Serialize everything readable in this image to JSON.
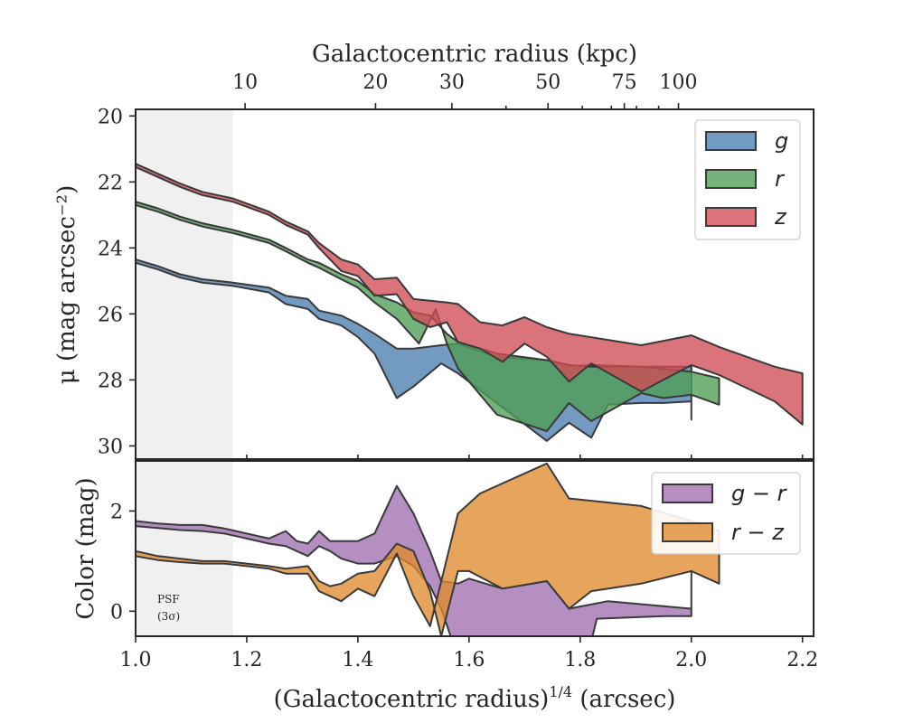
{
  "chart_data": [
    {
      "type": "area",
      "panel": "surface_brightness",
      "top_xlabel": "Galactocentric radius (kpc)",
      "top_ticks": [
        10,
        20,
        30,
        50,
        75,
        100
      ],
      "top_tick_labels": [
        "10",
        "20",
        "30",
        "50",
        "75",
        "100"
      ],
      "ylabel": "μ (mag arcsec⁻²)",
      "ylim": [
        30.4,
        19.8
      ],
      "yticks": [
        20,
        22,
        24,
        26,
        28,
        30
      ],
      "ytick_labels": [
        "20",
        "22",
        "24",
        "26",
        "28",
        "30"
      ],
      "xlim": [
        1.0,
        2.22
      ],
      "psf_region": [
        1.0,
        1.175
      ],
      "legend": {
        "placement": "top-right",
        "entries": [
          "g",
          "r",
          "z"
        ]
      },
      "series": [
        {
          "name": "g",
          "color": "#4c7fb0",
          "upper": [
            [
              1.0,
              24.35
            ],
            [
              1.04,
              24.55
            ],
            [
              1.08,
              24.8
            ],
            [
              1.12,
              24.95
            ],
            [
              1.175,
              25.05
            ],
            [
              1.24,
              25.2
            ],
            [
              1.27,
              25.45
            ],
            [
              1.31,
              25.55
            ],
            [
              1.33,
              25.9
            ],
            [
              1.37,
              26.05
            ],
            [
              1.4,
              26.3
            ],
            [
              1.43,
              26.6
            ],
            [
              1.47,
              27.05
            ],
            [
              1.5,
              27.05
            ],
            [
              1.55,
              26.95
            ],
            [
              1.58,
              26.9
            ],
            [
              1.65,
              27.3
            ],
            [
              1.74,
              27.4
            ],
            [
              1.78,
              27.6
            ],
            [
              1.82,
              27.55
            ],
            [
              1.91,
              27.6
            ],
            [
              2.0,
              27.6
            ]
          ],
          "lower": [
            [
              1.0,
              24.45
            ],
            [
              1.04,
              24.65
            ],
            [
              1.08,
              24.9
            ],
            [
              1.12,
              25.05
            ],
            [
              1.175,
              25.15
            ],
            [
              1.24,
              25.35
            ],
            [
              1.27,
              25.7
            ],
            [
              1.31,
              25.85
            ],
            [
              1.33,
              26.15
            ],
            [
              1.37,
              26.35
            ],
            [
              1.4,
              26.7
            ],
            [
              1.43,
              27.2
            ],
            [
              1.47,
              28.55
            ],
            [
              1.5,
              28.2
            ],
            [
              1.55,
              27.5
            ],
            [
              1.58,
              27.8
            ],
            [
              1.65,
              28.7
            ],
            [
              1.74,
              29.85
            ],
            [
              1.78,
              29.3
            ],
            [
              1.82,
              29.75
            ],
            [
              1.85,
              28.75
            ],
            [
              1.91,
              28.7
            ],
            [
              1.95,
              28.7
            ],
            [
              2.0,
              28.65
            ],
            [
              2.0,
              29.2
            ]
          ]
        },
        {
          "name": "r",
          "color": "#4f9d55",
          "upper": [
            [
              1.0,
              22.6
            ],
            [
              1.04,
              22.8
            ],
            [
              1.08,
              23.05
            ],
            [
              1.12,
              23.25
            ],
            [
              1.175,
              23.45
            ],
            [
              1.24,
              23.75
            ],
            [
              1.27,
              24.0
            ],
            [
              1.31,
              24.35
            ],
            [
              1.33,
              24.45
            ],
            [
              1.37,
              24.8
            ],
            [
              1.4,
              25.0
            ],
            [
              1.43,
              25.4
            ],
            [
              1.47,
              25.65
            ],
            [
              1.5,
              25.95
            ],
            [
              1.53,
              26.05
            ],
            [
              1.56,
              26.6
            ],
            [
              1.58,
              26.85
            ],
            [
              1.65,
              27.2
            ],
            [
              1.74,
              27.4
            ],
            [
              1.78,
              27.55
            ],
            [
              1.82,
              27.6
            ],
            [
              1.91,
              27.6
            ],
            [
              2.0,
              27.75
            ],
            [
              2.05,
              27.95
            ]
          ],
          "lower": [
            [
              1.0,
              22.7
            ],
            [
              1.04,
              22.9
            ],
            [
              1.08,
              23.15
            ],
            [
              1.12,
              23.35
            ],
            [
              1.175,
              23.55
            ],
            [
              1.24,
              23.85
            ],
            [
              1.27,
              24.1
            ],
            [
              1.31,
              24.45
            ],
            [
              1.33,
              24.6
            ],
            [
              1.37,
              24.95
            ],
            [
              1.4,
              25.2
            ],
            [
              1.43,
              25.65
            ],
            [
              1.47,
              26.15
            ],
            [
              1.51,
              26.9
            ],
            [
              1.54,
              25.85
            ],
            [
              1.56,
              26.9
            ],
            [
              1.58,
              27.65
            ],
            [
              1.65,
              29.05
            ],
            [
              1.74,
              29.55
            ],
            [
              1.78,
              28.7
            ],
            [
              1.82,
              29.25
            ],
            [
              1.91,
              28.4
            ],
            [
              1.95,
              28.55
            ],
            [
              2.0,
              28.45
            ],
            [
              2.05,
              28.75
            ]
          ]
        },
        {
          "name": "z",
          "color": "#d14c55",
          "upper": [
            [
              1.0,
              21.45
            ],
            [
              1.04,
              21.75
            ],
            [
              1.08,
              22.05
            ],
            [
              1.12,
              22.3
            ],
            [
              1.175,
              22.5
            ],
            [
              1.24,
              22.9
            ],
            [
              1.27,
              23.2
            ],
            [
              1.31,
              23.5
            ],
            [
              1.33,
              23.85
            ],
            [
              1.37,
              24.35
            ],
            [
              1.4,
              24.5
            ],
            [
              1.43,
              24.95
            ],
            [
              1.47,
              24.9
            ],
            [
              1.5,
              25.55
            ],
            [
              1.53,
              25.6
            ],
            [
              1.56,
              25.65
            ],
            [
              1.58,
              25.7
            ],
            [
              1.62,
              26.25
            ],
            [
              1.66,
              26.35
            ],
            [
              1.7,
              26.1
            ],
            [
              1.74,
              26.4
            ],
            [
              1.78,
              26.6
            ],
            [
              1.91,
              26.95
            ],
            [
              2.0,
              26.65
            ],
            [
              2.05,
              27.0
            ],
            [
              2.15,
              27.6
            ],
            [
              2.2,
              27.8
            ]
          ],
          "lower": [
            [
              1.0,
              21.55
            ],
            [
              1.04,
              21.85
            ],
            [
              1.08,
              22.15
            ],
            [
              1.12,
              22.4
            ],
            [
              1.175,
              22.6
            ],
            [
              1.24,
              23.0
            ],
            [
              1.27,
              23.3
            ],
            [
              1.31,
              23.6
            ],
            [
              1.33,
              24.0
            ],
            [
              1.37,
              24.7
            ],
            [
              1.4,
              24.85
            ],
            [
              1.43,
              25.45
            ],
            [
              1.47,
              25.4
            ],
            [
              1.5,
              26.15
            ],
            [
              1.53,
              26.4
            ],
            [
              1.56,
              26.25
            ],
            [
              1.58,
              26.85
            ],
            [
              1.62,
              27.05
            ],
            [
              1.66,
              27.45
            ],
            [
              1.7,
              26.9
            ],
            [
              1.74,
              27.3
            ],
            [
              1.78,
              28.05
            ],
            [
              1.82,
              27.5
            ],
            [
              1.91,
              28.35
            ],
            [
              2.0,
              27.55
            ],
            [
              2.05,
              27.85
            ],
            [
              2.15,
              28.65
            ],
            [
              2.2,
              29.35
            ]
          ]
        }
      ]
    },
    {
      "type": "area",
      "panel": "color",
      "xlabel": "(Galactocentric radius)^1/4 (arcsec)",
      "xlabel_main": "(Galactocentric radius)",
      "xlabel_sup": "1/4",
      "xlabel_unit": "(arcsec)",
      "xlim": [
        1.0,
        2.22
      ],
      "xticks": [
        1.0,
        1.2,
        1.4,
        1.6,
        1.8,
        2.0,
        2.2
      ],
      "xtick_labels": [
        "1.0",
        "1.2",
        "1.4",
        "1.6",
        "1.8",
        "2.0",
        "2.2"
      ],
      "ylabel": "Color (mag)",
      "ylim": [
        -0.5,
        3.0
      ],
      "yticks": [
        0,
        2
      ],
      "ytick_labels": [
        "0",
        "2"
      ],
      "psf_label": "PSF",
      "psf_sublabel": "(3σ)",
      "legend": {
        "placement": "top-right",
        "entries": [
          "g − r",
          "r − z"
        ]
      },
      "series": [
        {
          "name": "g − r",
          "color": "#a070b0",
          "upper": [
            [
              1.0,
              1.8
            ],
            [
              1.04,
              1.75
            ],
            [
              1.08,
              1.72
            ],
            [
              1.12,
              1.72
            ],
            [
              1.16,
              1.65
            ],
            [
              1.2,
              1.55
            ],
            [
              1.24,
              1.45
            ],
            [
              1.27,
              1.6
            ],
            [
              1.29,
              1.4
            ],
            [
              1.31,
              1.35
            ],
            [
              1.33,
              1.6
            ],
            [
              1.35,
              1.4
            ],
            [
              1.37,
              1.4
            ],
            [
              1.4,
              1.4
            ],
            [
              1.43,
              1.55
            ],
            [
              1.47,
              2.5
            ],
            [
              1.5,
              1.95
            ],
            [
              1.53,
              1.2
            ],
            [
              1.55,
              0.6
            ],
            [
              1.58,
              0.55
            ],
            [
              1.6,
              0.65
            ],
            [
              1.66,
              0.45
            ],
            [
              1.74,
              0.6
            ],
            [
              1.78,
              0.05
            ],
            [
              1.85,
              0.2
            ],
            [
              2.0,
              0.05
            ]
          ],
          "lower": [
            [
              1.0,
              1.7
            ],
            [
              1.04,
              1.66
            ],
            [
              1.08,
              1.62
            ],
            [
              1.12,
              1.6
            ],
            [
              1.16,
              1.55
            ],
            [
              1.2,
              1.45
            ],
            [
              1.24,
              1.35
            ],
            [
              1.27,
              1.3
            ],
            [
              1.29,
              1.2
            ],
            [
              1.31,
              1.1
            ],
            [
              1.33,
              1.3
            ],
            [
              1.35,
              1.2
            ],
            [
              1.37,
              1.05
            ],
            [
              1.4,
              0.95
            ],
            [
              1.43,
              0.95
            ],
            [
              1.47,
              1.1
            ],
            [
              1.5,
              0.9
            ],
            [
              1.53,
              0.5
            ],
            [
              1.55,
              0.05
            ],
            [
              1.57,
              -0.6
            ],
            [
              1.82,
              -0.6
            ],
            [
              1.83,
              -0.15
            ],
            [
              1.95,
              -0.1
            ],
            [
              2.0,
              -0.1
            ],
            [
              2.0,
              0.8
            ]
          ]
        },
        {
          "name": "r − z",
          "color": "#e08a30",
          "upper": [
            [
              1.0,
              1.2
            ],
            [
              1.04,
              1.1
            ],
            [
              1.08,
              1.05
            ],
            [
              1.12,
              1.0
            ],
            [
              1.16,
              1.0
            ],
            [
              1.2,
              0.95
            ],
            [
              1.24,
              0.9
            ],
            [
              1.27,
              0.85
            ],
            [
              1.31,
              0.9
            ],
            [
              1.33,
              0.6
            ],
            [
              1.35,
              0.5
            ],
            [
              1.37,
              0.55
            ],
            [
              1.4,
              0.75
            ],
            [
              1.43,
              0.8
            ],
            [
              1.47,
              1.35
            ],
            [
              1.5,
              1.2
            ],
            [
              1.53,
              0.4
            ],
            [
              1.55,
              -0.5
            ],
            [
              1.58,
              0.8
            ],
            [
              1.6,
              0.8
            ],
            [
              1.66,
              0.45
            ],
            [
              1.74,
              0.6
            ],
            [
              1.78,
              0.05
            ],
            [
              1.82,
              0.4
            ],
            [
              1.91,
              0.55
            ],
            [
              2.0,
              0.8
            ],
            [
              2.05,
              0.55
            ]
          ],
          "lower": [
            [
              1.0,
              1.1
            ],
            [
              1.04,
              1.02
            ],
            [
              1.08,
              0.98
            ],
            [
              1.12,
              0.95
            ],
            [
              1.16,
              0.95
            ],
            [
              1.2,
              0.9
            ],
            [
              1.24,
              0.85
            ],
            [
              1.27,
              0.75
            ],
            [
              1.31,
              0.75
            ],
            [
              1.33,
              0.4
            ],
            [
              1.35,
              0.3
            ],
            [
              1.37,
              0.2
            ],
            [
              1.4,
              0.45
            ],
            [
              1.43,
              0.3
            ],
            [
              1.47,
              1.15
            ],
            [
              1.5,
              0.3
            ],
            [
              1.53,
              -0.3
            ],
            [
              1.58,
              1.95
            ],
            [
              1.62,
              2.35
            ],
            [
              1.74,
              2.95
            ],
            [
              1.78,
              2.25
            ],
            [
              1.91,
              2.1
            ],
            [
              2.0,
              1.8
            ],
            [
              2.05,
              1.6
            ]
          ]
        }
      ]
    }
  ]
}
